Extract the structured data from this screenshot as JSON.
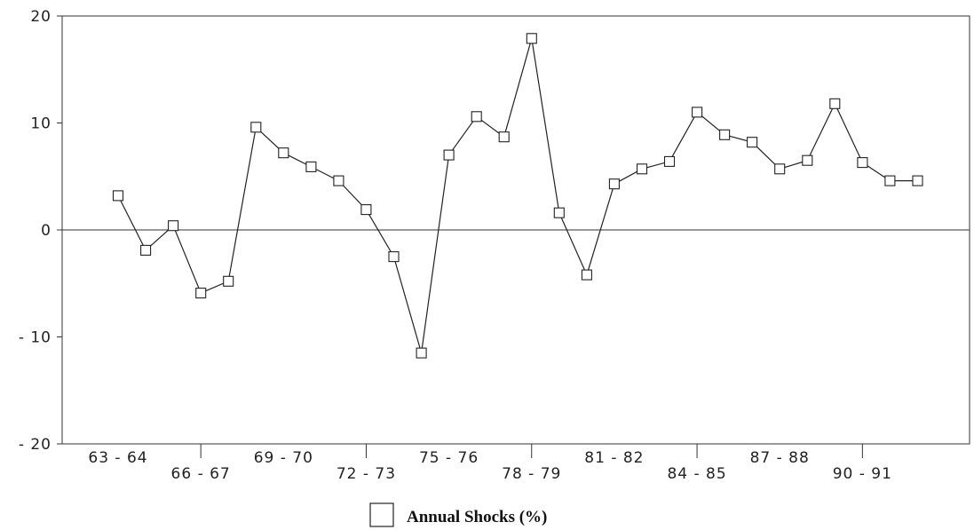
{
  "chart_data": {
    "type": "line",
    "title": "",
    "xlabel": "",
    "ylabel": "",
    "ylim": [
      -20,
      20
    ],
    "yticks": [
      20,
      10,
      0,
      -10,
      -20
    ],
    "ytick_labels": [
      "20",
      "10",
      "0",
      "- 10",
      "- 20"
    ],
    "grid": false,
    "reference_line_y": 0,
    "marker": "square",
    "line_color": "#222222",
    "x_labels": [
      {
        "label": "63 - 64",
        "index": 0,
        "row": 1
      },
      {
        "label": "66 - 67",
        "index": 3,
        "row": 2
      },
      {
        "label": "69 - 70",
        "index": 6,
        "row": 1
      },
      {
        "label": "72 - 73",
        "index": 9,
        "row": 2
      },
      {
        "label": "75 - 76",
        "index": 12,
        "row": 1
      },
      {
        "label": "78 - 79",
        "index": 15,
        "row": 2
      },
      {
        "label": "81 - 82",
        "index": 18,
        "row": 1
      },
      {
        "label": "84 - 85",
        "index": 21,
        "row": 2
      },
      {
        "label": "87 - 88",
        "index": 24,
        "row": 1
      },
      {
        "label": "90 - 91",
        "index": 27,
        "row": 2
      }
    ],
    "series": [
      {
        "name": "Annual Shocks (%)",
        "values": [
          3.2,
          -1.9,
          0.4,
          -5.9,
          -4.8,
          9.6,
          7.2,
          5.9,
          4.6,
          1.9,
          -2.5,
          -11.5,
          7.0,
          10.6,
          8.7,
          17.9,
          1.6,
          -4.2,
          4.3,
          5.7,
          6.4,
          11.0,
          8.9,
          8.2,
          5.7,
          6.5,
          11.8,
          6.3,
          4.6,
          4.6
        ]
      }
    ],
    "legend": {
      "position": "bottom-center",
      "label": "Annual Shocks (%)"
    }
  }
}
